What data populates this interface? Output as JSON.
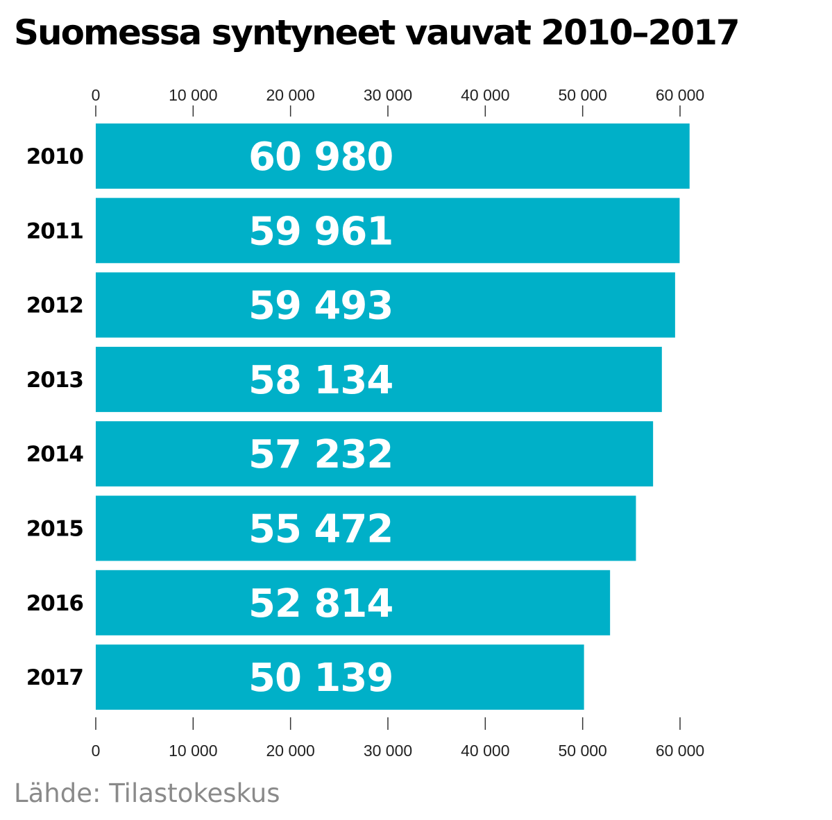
{
  "chart_data": {
    "type": "bar",
    "orientation": "horizontal",
    "title": "Suomessa syntyneet vauvat 2010–2017",
    "source": "Lähde: Tilastokeskus",
    "categories": [
      "2010",
      "2011",
      "2012",
      "2013",
      "2014",
      "2015",
      "2016",
      "2017"
    ],
    "values": [
      60980,
      59961,
      59493,
      58134,
      57232,
      55472,
      52814,
      50139
    ],
    "value_labels": [
      "60 980",
      "59 961",
      "59 493",
      "58 134",
      "57 232",
      "55 472",
      "52 814",
      "50 139"
    ],
    "xlim": [
      0,
      60000
    ],
    "xticks": [
      0,
      10000,
      20000,
      30000,
      40000,
      50000,
      60000
    ],
    "xtick_labels": [
      "0",
      "10 000",
      "20 000",
      "30 000",
      "40 000",
      "50 000",
      "60 000"
    ],
    "axis_position": "top and bottom",
    "grid": false,
    "legend": "none",
    "bar_color": "#00b0c8"
  }
}
